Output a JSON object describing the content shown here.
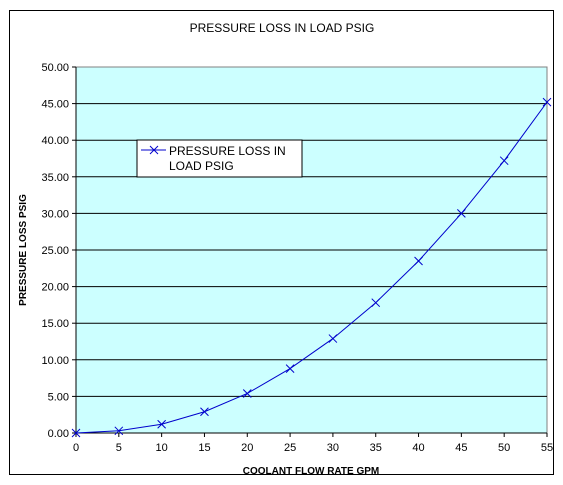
{
  "chart_data": {
    "type": "line",
    "title": "PRESSURE LOSS IN LOAD PSIG",
    "xlabel": "COOLANT FLOW RATE GPM",
    "ylabel": "PRESSURE LOSS PSIG",
    "xlim": [
      0,
      55
    ],
    "ylim": [
      0,
      50
    ],
    "x_ticks": [
      "0",
      "5",
      "10",
      "15",
      "20",
      "25",
      "30",
      "35",
      "40",
      "45",
      "50",
      "55"
    ],
    "y_ticks": [
      "0.00",
      "5.00",
      "10.00",
      "15.00",
      "20.00",
      "25.00",
      "30.00",
      "35.00",
      "40.00",
      "45.00",
      "50.00"
    ],
    "grid": "horizontal",
    "plot_background": "#ccffff",
    "legend": {
      "position": "upper-left",
      "lines": [
        "PRESSURE LOSS IN",
        "LOAD PSIG"
      ]
    },
    "series": [
      {
        "name": "PRESSURE LOSS IN LOAD PSIG",
        "color": "#0000cc",
        "marker": "x",
        "x": [
          0,
          5,
          10,
          15,
          20,
          25,
          30,
          35,
          40,
          45,
          50,
          55
        ],
        "values": [
          0.0,
          0.3,
          1.2,
          2.9,
          5.4,
          8.8,
          12.9,
          17.8,
          23.5,
          30.0,
          37.2,
          45.2
        ]
      }
    ]
  }
}
